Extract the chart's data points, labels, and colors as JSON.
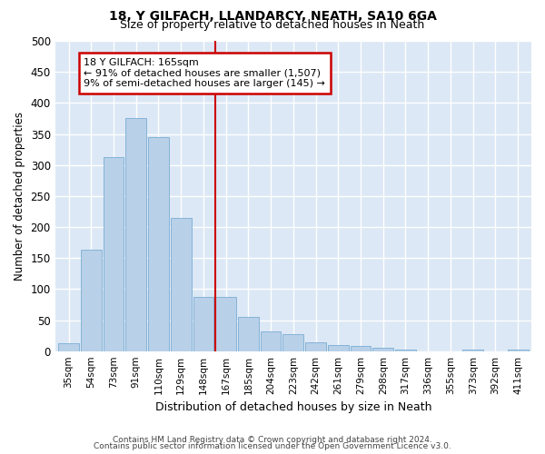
{
  "title": "18, Y GILFACH, LLANDARCY, NEATH, SA10 6GA",
  "subtitle": "Size of property relative to detached houses in Neath",
  "xlabel": "Distribution of detached houses by size in Neath",
  "ylabel": "Number of detached properties",
  "bar_color": "#b8d0e8",
  "bar_edge_color": "#7aadd4",
  "background_color": "#dce8f5",
  "grid_color": "#ffffff",
  "marker_line_color": "#cc0000",
  "marker_line_index": 7,
  "annotation_text": "18 Y GILFACH: 165sqm\n← 91% of detached houses are smaller (1,507)\n9% of semi-detached houses are larger (145) →",
  "categories": [
    "35sqm",
    "54sqm",
    "73sqm",
    "91sqm",
    "110sqm",
    "129sqm",
    "148sqm",
    "167sqm",
    "185sqm",
    "204sqm",
    "223sqm",
    "242sqm",
    "261sqm",
    "279sqm",
    "298sqm",
    "317sqm",
    "336sqm",
    "355sqm",
    "373sqm",
    "392sqm",
    "411sqm"
  ],
  "values": [
    12,
    163,
    312,
    375,
    345,
    215,
    88,
    88,
    55,
    32,
    28,
    14,
    10,
    8,
    5,
    3,
    0,
    0,
    2,
    0,
    2
  ],
  "ylim": [
    0,
    500
  ],
  "yticks": [
    0,
    50,
    100,
    150,
    200,
    250,
    300,
    350,
    400,
    450,
    500
  ],
  "footnote1": "Contains HM Land Registry data © Crown copyright and database right 2024.",
  "footnote2": "Contains public sector information licensed under the Open Government Licence v3.0."
}
